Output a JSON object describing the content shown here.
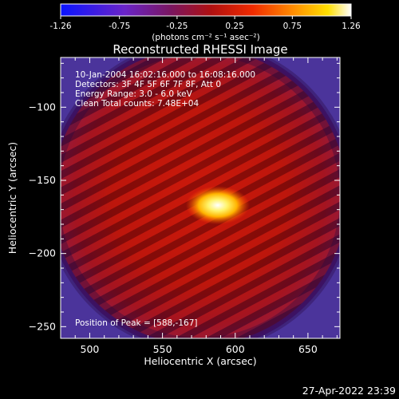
{
  "colorbar": {
    "ticks": [
      "-1.26",
      "-0.75",
      "-0.25",
      "0.25",
      "0.75",
      "1.26"
    ],
    "tick_values": [
      -1.26,
      -0.75,
      -0.25,
      0.25,
      0.75,
      1.26
    ],
    "range": [
      -1.26,
      1.26
    ],
    "units_label": "(photons cm⁻² s⁻¹ asec⁻²)"
  },
  "chart_data": {
    "type": "heatmap",
    "title": "Reconstructed RHESSI Image",
    "xlabel": "Heliocentric X (arcsec)",
    "ylabel": "Heliocentric Y (arcsec)",
    "xlim": [
      480,
      672
    ],
    "ylim": [
      -258,
      -66
    ],
    "xticks": [
      500,
      550,
      600,
      650
    ],
    "xtick_labels": [
      "500",
      "550",
      "600",
      "650"
    ],
    "yticks": [
      -100,
      -150,
      -200,
      -250
    ],
    "ytick_labels": [
      "−100",
      "−150",
      "−200",
      "−250"
    ],
    "annotations": [
      "10-Jan-2004 16:02:16.000 to 16:08:16.000",
      "Detectors: 3F 4F 5F 6F 7F 8F, Att 0",
      "Energy Range: 3.0 - 6.0 keV",
      "Clean     Total counts: 7.48E+04"
    ],
    "peak_label": "Position of Peak = [588,-167]",
    "peak": [
      588,
      -167
    ],
    "colormap": "rainbow-like: blue → purple → red → orange → yellow → white",
    "grid": false
  },
  "footer": {
    "timestamp": "27-Apr-2022 23:39"
  }
}
